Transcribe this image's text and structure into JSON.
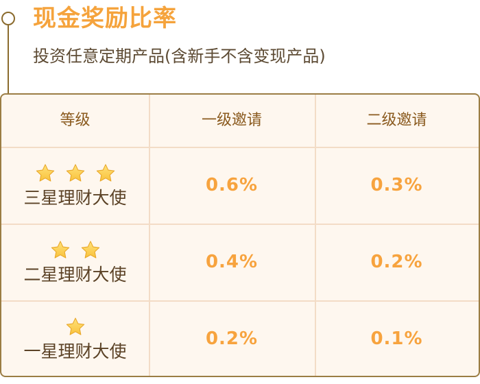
{
  "header": {
    "title": "现金奖励比率",
    "subtitle": "投资任意定期产品(含新手不含变现产品)"
  },
  "table": {
    "columns": [
      "等级",
      "一级邀请",
      "二级邀请"
    ],
    "rows": [
      {
        "stars": 3,
        "level": "三星理财大使",
        "first_rate": "0.6%",
        "second_rate": "0.3%"
      },
      {
        "stars": 2,
        "level": "二星理财大使",
        "first_rate": "0.4%",
        "second_rate": "0.2%"
      },
      {
        "stars": 1,
        "level": "一星理财大使",
        "first_rate": "0.2%",
        "second_rate": "0.1%"
      }
    ]
  },
  "colors": {
    "title": "#f5a33c",
    "rate": "#f7a33e",
    "border": "#9b7d44",
    "table_bg": "#fef7ef",
    "star": "#f9c23c"
  },
  "icons": {
    "star": "star-icon",
    "timeline_marker": "circle-marker-icon"
  }
}
